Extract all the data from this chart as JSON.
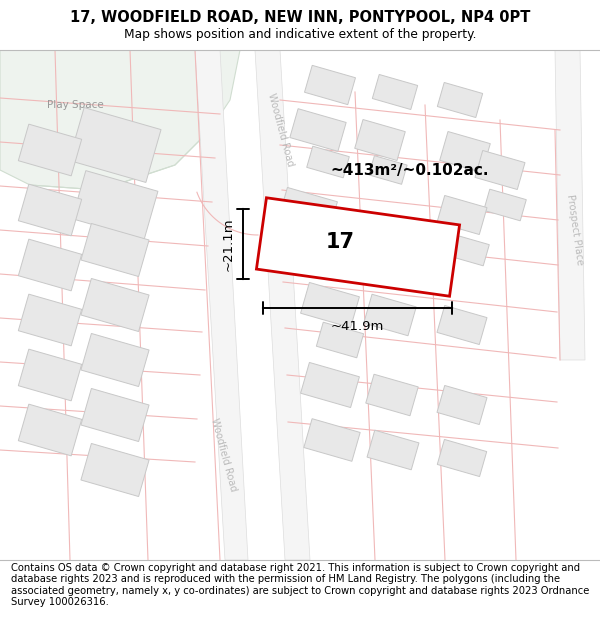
{
  "title_line1": "17, WOODFIELD ROAD, NEW INN, PONTYPOOL, NP4 0PT",
  "title_line2": "Map shows position and indicative extent of the property.",
  "footer_text": "Contains OS data © Crown copyright and database right 2021. This information is subject to Crown copyright and database rights 2023 and is reproduced with the permission of HM Land Registry. The polygons (including the associated geometry, namely x, y co-ordinates) are subject to Crown copyright and database rights 2023 Ordnance Survey 100026316.",
  "map_bg": "#ffffff",
  "play_space_color": "#eef3ee",
  "play_space_edge": "#d0ddd0",
  "road_fill": "#f5f5f5",
  "road_edge": "#cccccc",
  "road_line": "#f0b8b8",
  "building_fill": "#e8e8e8",
  "building_edge": "#c8c8c8",
  "highlight_fill": "#ffffff",
  "highlight_stroke": "#cc0000",
  "label_17": "17",
  "area_label": "~413m²/~0.102ac.",
  "dim_width": "~41.9m",
  "dim_height": "~21.1m",
  "road_label_top": "Woodfield Road",
  "road_label_bottom": "Woodfield Road",
  "road_label_right": "Prospect Place",
  "play_space_label": "Play Space",
  "title_fontsize": 10.5,
  "footer_fontsize": 7.2
}
